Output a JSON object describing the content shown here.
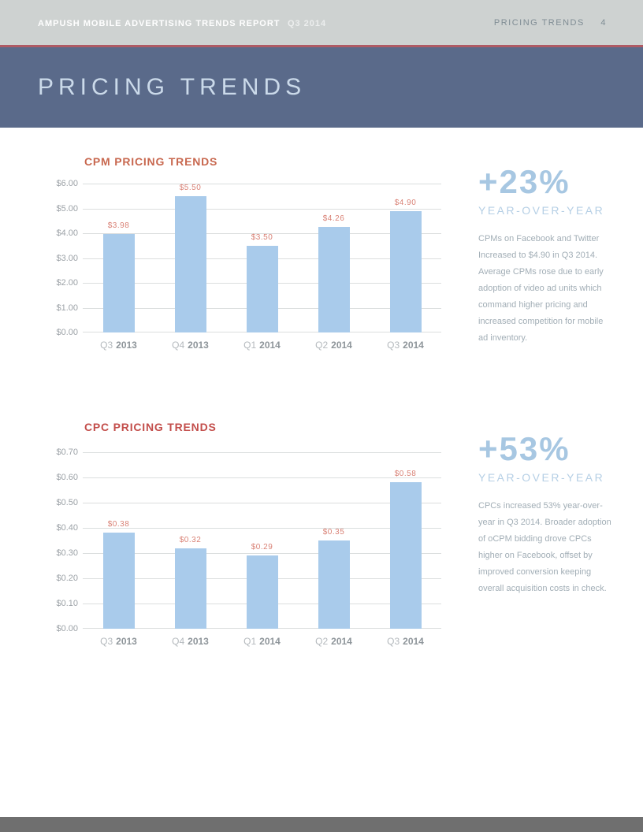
{
  "header": {
    "report_title": "AMPUSH MOBILE ADVERTISING TRENDS REPORT",
    "report_period": "Q3 2014",
    "section_label": "PRICING TRENDS",
    "page_number": "4"
  },
  "banner": {
    "title": "PRICING TRENDS"
  },
  "chart_data": [
    {
      "type": "bar",
      "title": "CPM PRICING TRENDS",
      "title_color": "#C8684F",
      "categories": [
        "Q3 2013",
        "Q4 2013",
        "Q1 2014",
        "Q2 2014",
        "Q3 2014"
      ],
      "values": [
        3.98,
        5.5,
        3.5,
        4.26,
        4.9
      ],
      "value_labels": [
        "$3.98",
        "$5.50",
        "$3.50",
        "$4.26",
        "$4.90"
      ],
      "y_ticks": [
        "$6.00",
        "$5.00",
        "$4.00",
        "$3.00",
        "$2.00",
        "$1.00",
        "$0.00"
      ],
      "ylim": [
        0,
        6
      ],
      "xlabel": "",
      "ylabel": "",
      "grid": true,
      "legend": "none",
      "bar_color": "#A9CBEB",
      "value_label_color": "#D98175"
    },
    {
      "type": "bar",
      "title": "CPC PRICING TRENDS",
      "title_color": "#C34E4B",
      "categories": [
        "Q3 2013",
        "Q4 2013",
        "Q1 2014",
        "Q2 2014",
        "Q3 2014"
      ],
      "values": [
        0.38,
        0.32,
        0.29,
        0.35,
        0.58
      ],
      "value_labels": [
        "$0.38",
        "$0.32",
        "$0.29",
        "$0.35",
        "$0.58"
      ],
      "y_ticks": [
        "$0.70",
        "$0.60",
        "$0.50",
        "$0.40",
        "$0.30",
        "$0.20",
        "$0.10",
        "$0.00"
      ],
      "ylim": [
        0,
        0.7
      ],
      "xlabel": "",
      "ylabel": "",
      "grid": true,
      "legend": "none",
      "bar_color": "#A9CBEB",
      "value_label_color": "#D98175"
    }
  ],
  "stats": [
    {
      "value": "+23%",
      "label": "YEAR-OVER-YEAR",
      "text": "CPMs on Facebook and Twitter Increased to $4.90 in Q3 2014. Average CPMs rose due to early adoption of video ad units which command higher pricing and increased competition for mobile ad inventory."
    },
    {
      "value": "+53%",
      "label": "YEAR-OVER-YEAR",
      "text": "CPCs increased 53% year-over-year in Q3 2014. Broader adoption of oCPM bidding drove CPCs higher on Facebook, offset by improved conversion keeping overall acquisition costs in check."
    }
  ],
  "theme": {
    "topbar_bg": "#CED2D1",
    "accent_line": "#AF5A64",
    "banner_bg": "#5A6A8A",
    "banner_text": "#CBDAEA",
    "stat_blue": "#A7C7E2",
    "body_text": "#A2AEB6",
    "gridline": "#DBDEDE",
    "footer_gray": "#6F6F6F"
  }
}
